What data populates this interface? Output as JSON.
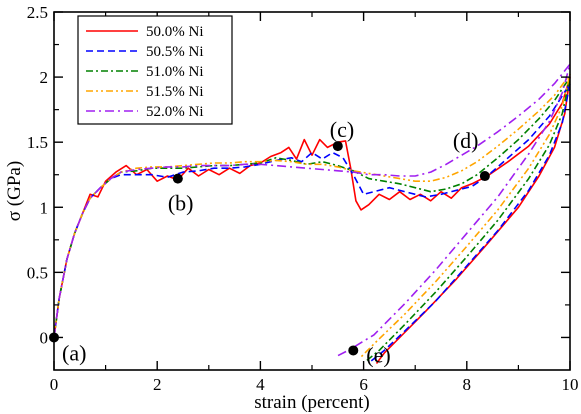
{
  "chart_data": {
    "type": "line",
    "xlabel": "strain (percent)",
    "ylabel": "σ (GPa)",
    "xlim": [
      0,
      10
    ],
    "ylim": [
      -0.25,
      2.5
    ],
    "xticks": [
      0,
      2,
      4,
      6,
      8,
      10
    ],
    "yticks": [
      0,
      0.5,
      1,
      1.5,
      2,
      2.5
    ],
    "xtick_labels": [
      "0",
      "2",
      "4",
      "6",
      "8",
      "10"
    ],
    "ytick_labels": [
      "0",
      "0.5",
      "1",
      "1.5",
      "2",
      "2.5"
    ],
    "grid": false,
    "legend_position": "top-left",
    "series": [
      {
        "name": "50.0% Ni",
        "color": "#ff0000",
        "dash": "solid",
        "points": [
          [
            0,
            0
          ],
          [
            0.1,
            0.3
          ],
          [
            0.25,
            0.6
          ],
          [
            0.4,
            0.8
          ],
          [
            0.55,
            0.95
          ],
          [
            0.7,
            1.1
          ],
          [
            0.85,
            1.08
          ],
          [
            1.0,
            1.2
          ],
          [
            1.2,
            1.27
          ],
          [
            1.4,
            1.32
          ],
          [
            1.6,
            1.25
          ],
          [
            1.8,
            1.29
          ],
          [
            2.0,
            1.2
          ],
          [
            2.2,
            1.24
          ],
          [
            2.4,
            1.21
          ],
          [
            2.6,
            1.3
          ],
          [
            2.8,
            1.24
          ],
          [
            3.0,
            1.29
          ],
          [
            3.2,
            1.25
          ],
          [
            3.4,
            1.3
          ],
          [
            3.6,
            1.26
          ],
          [
            3.8,
            1.32
          ],
          [
            4.0,
            1.34
          ],
          [
            4.2,
            1.39
          ],
          [
            4.4,
            1.42
          ],
          [
            4.55,
            1.46
          ],
          [
            4.7,
            1.37
          ],
          [
            4.85,
            1.52
          ],
          [
            5.0,
            1.4
          ],
          [
            5.15,
            1.52
          ],
          [
            5.3,
            1.46
          ],
          [
            5.5,
            1.5
          ],
          [
            5.65,
            1.51
          ],
          [
            5.75,
            1.3
          ],
          [
            5.85,
            1.05
          ],
          [
            5.95,
            0.98
          ],
          [
            6.1,
            1.02
          ],
          [
            6.3,
            1.1
          ],
          [
            6.5,
            1.06
          ],
          [
            6.7,
            1.12
          ],
          [
            6.9,
            1.06
          ],
          [
            7.1,
            1.1
          ],
          [
            7.3,
            1.05
          ],
          [
            7.5,
            1.12
          ],
          [
            7.7,
            1.07
          ],
          [
            7.9,
            1.15
          ],
          [
            8.1,
            1.18
          ],
          [
            8.4,
            1.24
          ],
          [
            8.8,
            1.35
          ],
          [
            9.2,
            1.47
          ],
          [
            9.6,
            1.64
          ],
          [
            9.85,
            1.8
          ],
          [
            10.0,
            2.0
          ],
          [
            9.9,
            1.72
          ],
          [
            9.7,
            1.46
          ],
          [
            9.4,
            1.24
          ],
          [
            9.0,
            1.0
          ],
          [
            8.4,
            0.72
          ],
          [
            7.8,
            0.45
          ],
          [
            7.2,
            0.2
          ],
          [
            6.7,
            0.0
          ],
          [
            6.4,
            -0.12
          ],
          [
            6.25,
            -0.2
          ]
        ]
      },
      {
        "name": "50.5% Ni",
        "color": "#0000ff",
        "dash": "7,4",
        "points": [
          [
            0,
            0
          ],
          [
            0.1,
            0.3
          ],
          [
            0.25,
            0.6
          ],
          [
            0.4,
            0.8
          ],
          [
            0.55,
            0.95
          ],
          [
            0.7,
            1.07
          ],
          [
            0.9,
            1.15
          ],
          [
            1.1,
            1.22
          ],
          [
            1.3,
            1.25
          ],
          [
            1.6,
            1.25
          ],
          [
            1.9,
            1.25
          ],
          [
            2.2,
            1.23
          ],
          [
            2.5,
            1.27
          ],
          [
            2.8,
            1.28
          ],
          [
            3.1,
            1.3
          ],
          [
            3.4,
            1.3
          ],
          [
            3.7,
            1.31
          ],
          [
            4.0,
            1.33
          ],
          [
            4.3,
            1.36
          ],
          [
            4.6,
            1.38
          ],
          [
            4.8,
            1.35
          ],
          [
            5.0,
            1.42
          ],
          [
            5.2,
            1.37
          ],
          [
            5.4,
            1.42
          ],
          [
            5.6,
            1.38
          ],
          [
            5.8,
            1.25
          ],
          [
            6.0,
            1.1
          ],
          [
            6.2,
            1.12
          ],
          [
            6.5,
            1.15
          ],
          [
            6.8,
            1.12
          ],
          [
            7.0,
            1.1
          ],
          [
            7.2,
            1.08
          ],
          [
            7.5,
            1.1
          ],
          [
            7.8,
            1.13
          ],
          [
            8.1,
            1.16
          ],
          [
            8.4,
            1.24
          ],
          [
            8.8,
            1.38
          ],
          [
            9.2,
            1.52
          ],
          [
            9.6,
            1.7
          ],
          [
            10.0,
            1.95
          ],
          [
            9.85,
            1.65
          ],
          [
            9.6,
            1.4
          ],
          [
            9.2,
            1.13
          ],
          [
            8.6,
            0.82
          ],
          [
            8.0,
            0.55
          ],
          [
            7.4,
            0.28
          ],
          [
            6.8,
            0.05
          ],
          [
            6.4,
            -0.1
          ],
          [
            6.15,
            -0.18
          ]
        ]
      },
      {
        "name": "51.0% Ni",
        "color": "#008000",
        "dash": "7,3,2,3",
        "points": [
          [
            0,
            0
          ],
          [
            0.1,
            0.3
          ],
          [
            0.25,
            0.6
          ],
          [
            0.4,
            0.8
          ],
          [
            0.55,
            0.95
          ],
          [
            0.7,
            1.07
          ],
          [
            0.9,
            1.15
          ],
          [
            1.1,
            1.22
          ],
          [
            1.3,
            1.27
          ],
          [
            1.6,
            1.28
          ],
          [
            1.9,
            1.3
          ],
          [
            2.2,
            1.3
          ],
          [
            2.5,
            1.3
          ],
          [
            2.8,
            1.31
          ],
          [
            3.1,
            1.32
          ],
          [
            3.4,
            1.32
          ],
          [
            3.7,
            1.33
          ],
          [
            4.0,
            1.34
          ],
          [
            4.3,
            1.38
          ],
          [
            4.6,
            1.36
          ],
          [
            4.9,
            1.33
          ],
          [
            5.2,
            1.35
          ],
          [
            5.5,
            1.32
          ],
          [
            5.8,
            1.28
          ],
          [
            6.1,
            1.22
          ],
          [
            6.4,
            1.2
          ],
          [
            6.7,
            1.18
          ],
          [
            7.0,
            1.15
          ],
          [
            7.3,
            1.12
          ],
          [
            7.6,
            1.14
          ],
          [
            7.9,
            1.18
          ],
          [
            8.2,
            1.25
          ],
          [
            8.6,
            1.38
          ],
          [
            9.0,
            1.52
          ],
          [
            9.4,
            1.68
          ],
          [
            9.7,
            1.82
          ],
          [
            10.0,
            2.0
          ],
          [
            9.85,
            1.72
          ],
          [
            9.6,
            1.48
          ],
          [
            9.2,
            1.22
          ],
          [
            8.6,
            0.9
          ],
          [
            8.0,
            0.62
          ],
          [
            7.4,
            0.35
          ],
          [
            6.8,
            0.1
          ],
          [
            6.3,
            -0.1
          ],
          [
            6.05,
            -0.18
          ]
        ]
      },
      {
        "name": "51.5% Ni",
        "color": "#ffa500",
        "dash": "7,3,2,3,2,3",
        "points": [
          [
            0,
            0
          ],
          [
            0.1,
            0.3
          ],
          [
            0.25,
            0.6
          ],
          [
            0.4,
            0.8
          ],
          [
            0.55,
            0.95
          ],
          [
            0.7,
            1.07
          ],
          [
            0.9,
            1.15
          ],
          [
            1.1,
            1.22
          ],
          [
            1.3,
            1.27
          ],
          [
            1.6,
            1.3
          ],
          [
            1.9,
            1.31
          ],
          [
            2.2,
            1.31
          ],
          [
            2.5,
            1.32
          ],
          [
            2.8,
            1.33
          ],
          [
            3.1,
            1.34
          ],
          [
            3.4,
            1.34
          ],
          [
            3.7,
            1.35
          ],
          [
            4.0,
            1.35
          ],
          [
            4.3,
            1.36
          ],
          [
            4.6,
            1.35
          ],
          [
            4.9,
            1.33
          ],
          [
            5.2,
            1.33
          ],
          [
            5.5,
            1.31
          ],
          [
            5.8,
            1.28
          ],
          [
            6.1,
            1.26
          ],
          [
            6.4,
            1.24
          ],
          [
            6.7,
            1.22
          ],
          [
            7.0,
            1.2
          ],
          [
            7.3,
            1.2
          ],
          [
            7.6,
            1.23
          ],
          [
            7.9,
            1.28
          ],
          [
            8.2,
            1.35
          ],
          [
            8.6,
            1.47
          ],
          [
            9.0,
            1.6
          ],
          [
            9.4,
            1.74
          ],
          [
            9.7,
            1.86
          ],
          [
            10.0,
            2.02
          ],
          [
            9.85,
            1.78
          ],
          [
            9.6,
            1.56
          ],
          [
            9.2,
            1.3
          ],
          [
            8.6,
            0.98
          ],
          [
            8.0,
            0.7
          ],
          [
            7.4,
            0.43
          ],
          [
            6.8,
            0.18
          ],
          [
            6.2,
            -0.05
          ],
          [
            5.95,
            -0.15
          ]
        ]
      },
      {
        "name": "52.0% Ni",
        "color": "#a020f0",
        "dash": "9,4,2,4",
        "points": [
          [
            0,
            0
          ],
          [
            0.1,
            0.3
          ],
          [
            0.25,
            0.6
          ],
          [
            0.4,
            0.8
          ],
          [
            0.55,
            0.95
          ],
          [
            0.7,
            1.07
          ],
          [
            0.9,
            1.15
          ],
          [
            1.1,
            1.22
          ],
          [
            1.3,
            1.27
          ],
          [
            1.6,
            1.29
          ],
          [
            1.9,
            1.3
          ],
          [
            2.2,
            1.31
          ],
          [
            2.5,
            1.31
          ],
          [
            2.8,
            1.32
          ],
          [
            3.1,
            1.32
          ],
          [
            3.4,
            1.32
          ],
          [
            3.7,
            1.33
          ],
          [
            4.0,
            1.33
          ],
          [
            4.3,
            1.32
          ],
          [
            4.6,
            1.31
          ],
          [
            4.9,
            1.3
          ],
          [
            5.2,
            1.29
          ],
          [
            5.5,
            1.28
          ],
          [
            5.8,
            1.27
          ],
          [
            6.1,
            1.25
          ],
          [
            6.4,
            1.25
          ],
          [
            6.7,
            1.24
          ],
          [
            7.0,
            1.24
          ],
          [
            7.3,
            1.27
          ],
          [
            7.6,
            1.33
          ],
          [
            7.9,
            1.4
          ],
          [
            8.2,
            1.47
          ],
          [
            8.6,
            1.58
          ],
          [
            9.0,
            1.7
          ],
          [
            9.4,
            1.83
          ],
          [
            9.7,
            1.95
          ],
          [
            10.0,
            2.1
          ],
          [
            9.85,
            1.88
          ],
          [
            9.6,
            1.66
          ],
          [
            9.2,
            1.41
          ],
          [
            8.6,
            1.08
          ],
          [
            8.0,
            0.8
          ],
          [
            7.4,
            0.52
          ],
          [
            6.8,
            0.26
          ],
          [
            6.2,
            0.02
          ],
          [
            5.7,
            -0.1
          ],
          [
            5.45,
            -0.15
          ]
        ]
      }
    ],
    "markers": [
      {
        "label": "(a)",
        "x": 0.0,
        "y": 0.0
      },
      {
        "label": "(b)",
        "x": 2.4,
        "y": 1.22
      },
      {
        "label": "(c)",
        "x": 5.5,
        "y": 1.47
      },
      {
        "label": "(d)",
        "x": 8.35,
        "y": 1.24
      },
      {
        "label": "(e)",
        "x": 5.8,
        "y": -0.1
      }
    ]
  }
}
